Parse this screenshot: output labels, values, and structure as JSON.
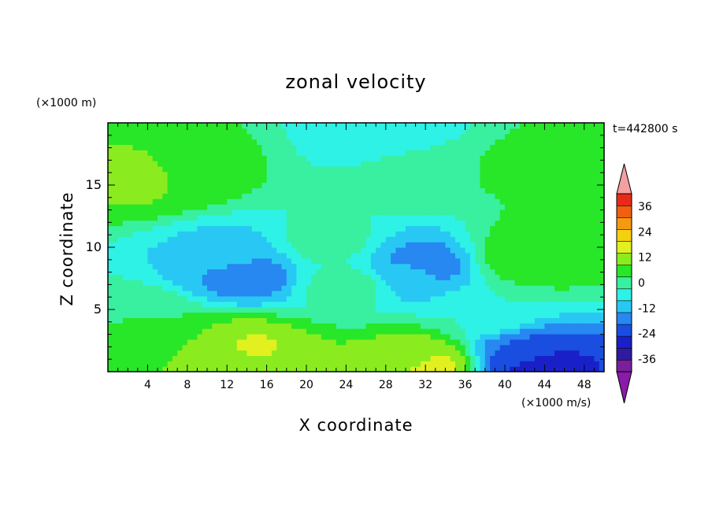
{
  "chart_data": {
    "type": "heatmap",
    "title": "zonal velocity",
    "xlabel": "X coordinate",
    "ylabel": "Z coordinate",
    "x_units": "(×1000 m/s)",
    "y_units": "(×1000 m)",
    "time_label": "t=442800 s",
    "xlim": [
      0,
      50
    ],
    "ylim": [
      0,
      20
    ],
    "x_ticks": [
      4,
      8,
      12,
      16,
      20,
      24,
      28,
      32,
      36,
      40,
      44,
      48
    ],
    "y_ticks": [
      5,
      10,
      15
    ],
    "colorbar": {
      "levels": [
        -42,
        -36,
        -30,
        -24,
        -18,
        -12,
        -6,
        0,
        6,
        12,
        18,
        24,
        30,
        36,
        42
      ],
      "tick_labels": [
        "36",
        "24",
        "12",
        "0",
        "-12",
        "-24",
        "-36"
      ],
      "tick_values": [
        36,
        24,
        12,
        0,
        -12,
        -24,
        -36
      ],
      "colors": [
        "#7a1f9c",
        "#2f1aa0",
        "#1a20c8",
        "#1a4ee0",
        "#2688f0",
        "#29c8f4",
        "#2ef2e6",
        "#38f0a0",
        "#28e628",
        "#8aec1e",
        "#e2f020",
        "#f5d010",
        "#f59a10",
        "#f06010",
        "#e82a1a"
      ],
      "under_color": "#8a1aa8",
      "over_color": "#f4a0a0"
    },
    "features": [
      {
        "x": 28,
        "z": 18.8,
        "value": -6
      },
      {
        "x": 8,
        "z": 16.0,
        "value": 8
      },
      {
        "x": 4,
        "z": 15.7,
        "value": 14
      },
      {
        "x": 31,
        "z": 16.2,
        "value": 6
      },
      {
        "x": 44,
        "z": 16.5,
        "value": 8
      },
      {
        "x": 12,
        "z": 9.5,
        "value": -8
      },
      {
        "x": 14,
        "z": 7.8,
        "value": -16
      },
      {
        "x": 31,
        "z": 8.0,
        "value": -10
      },
      {
        "x": 32,
        "z": 8.6,
        "value": -16
      },
      {
        "x": 22,
        "z": 10.5,
        "value": 2
      },
      {
        "x": 24,
        "z": 7.0,
        "value": 2
      },
      {
        "x": 42,
        "z": 9.0,
        "value": 8
      },
      {
        "x": 43,
        "z": 9.5,
        "value": 12
      },
      {
        "x": 4,
        "z": 4.0,
        "value": 6
      },
      {
        "x": 13,
        "z": 1.5,
        "value": 12
      },
      {
        "x": 14,
        "z": 1.8,
        "value": 20
      },
      {
        "x": 31,
        "z": 0.8,
        "value": 14
      },
      {
        "x": 32,
        "z": 0.4,
        "value": 22
      },
      {
        "x": 42,
        "z": 1.2,
        "value": -18
      },
      {
        "x": 43,
        "z": 0.6,
        "value": -30
      },
      {
        "x": 38,
        "z": 5.0,
        "value": 0
      }
    ]
  }
}
